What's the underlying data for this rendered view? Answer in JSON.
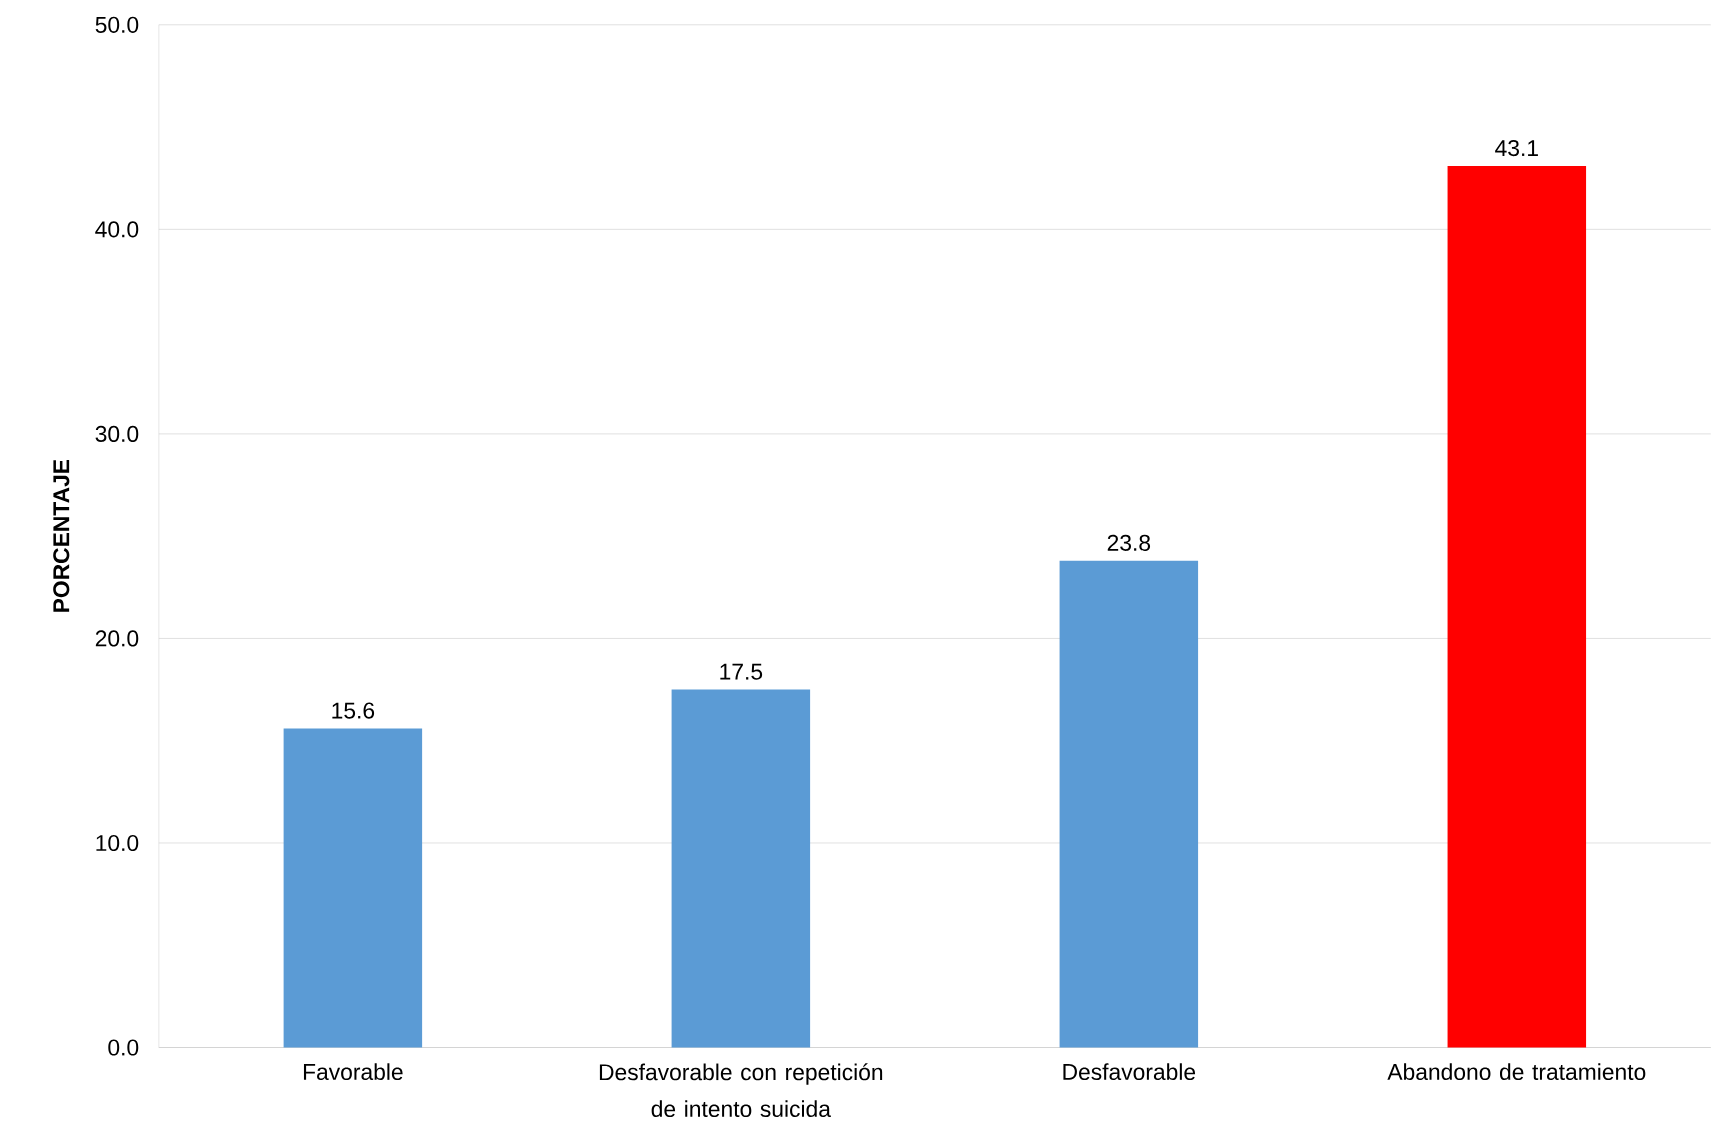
{
  "chart_data": {
    "type": "bar",
    "ylabel": "PORCENTAJE",
    "categories": [
      "Favorable",
      "Desfavorable con repetición de intento suicida",
      "Desfavorable",
      "Abandono de tratamiento"
    ],
    "values": [
      15.6,
      17.5,
      23.8,
      43.1
    ],
    "colors": [
      "#5b9bd5",
      "#5b9bd5",
      "#5b9bd5",
      "#ff0000"
    ],
    "ylim": [
      0,
      50
    ],
    "yticks": [
      {
        "value": 0,
        "label": "0.0"
      },
      {
        "value": 10,
        "label": "10.0"
      },
      {
        "value": 20,
        "label": "20.0"
      },
      {
        "value": 30,
        "label": "30.0"
      },
      {
        "value": 40,
        "label": "40.0"
      },
      {
        "value": 50,
        "label": "50.0"
      }
    ],
    "grid": "y",
    "data_labels": true
  }
}
